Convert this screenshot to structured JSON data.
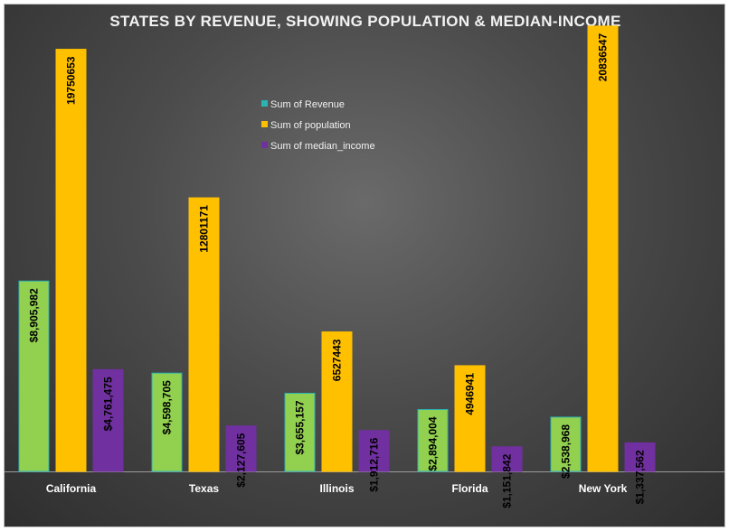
{
  "chart_data": {
    "type": "bar",
    "title": "STATES BY REVENUE, SHOWING POPULATION & MEDIAN-INCOME",
    "categories": [
      "California",
      "Texas",
      "Illinois",
      "Florida",
      "New York"
    ],
    "series": [
      {
        "name": "Sum of Revenue",
        "color": "#92d050",
        "border": "#2ab3b3",
        "values": [
          8905982,
          4598705,
          3655157,
          2894004,
          2538968
        ],
        "labels": [
          "$8,905,982",
          "$4,598,705",
          "$3,655,157",
          "$2,894,004",
          "$2,538,968"
        ]
      },
      {
        "name": "Sum of population",
        "color": "#ffc000",
        "border": "#ffc000",
        "values": [
          19750653,
          12801171,
          6527443,
          4946941,
          20836547
        ],
        "labels": [
          "19750653",
          "12801171",
          "6527443",
          "4946941",
          "20836547"
        ]
      },
      {
        "name": "Sum of median_income",
        "color": "#7030a0",
        "border": "#7030a0",
        "values": [
          4761475,
          2127605,
          1912716,
          1151842,
          1337562
        ],
        "labels": [
          "$4,761,475",
          "$2,127,605",
          "$1,912,716",
          "$1,151,842",
          "$1,337,562"
        ]
      }
    ],
    "ylim": [
      0,
      21000000
    ],
    "legend": "top-center",
    "grid": false,
    "xlabel": "",
    "ylabel": ""
  }
}
